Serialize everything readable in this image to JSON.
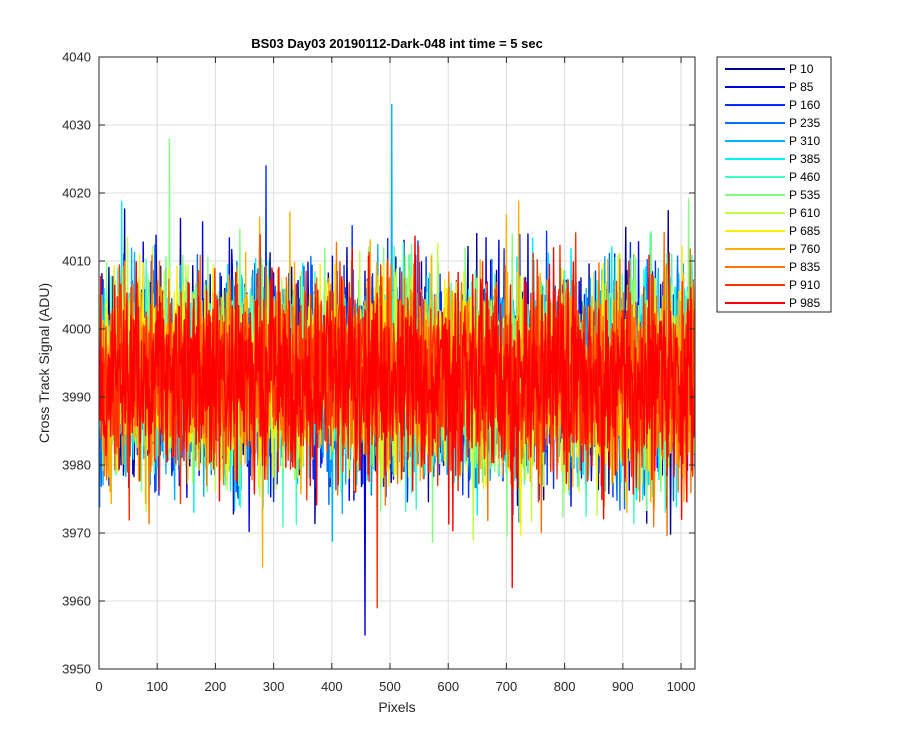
{
  "chart_data": {
    "type": "line",
    "title": "BS03 Day03 20190112-Dark-048 int time = 5 sec",
    "xlabel": "Pixels",
    "ylabel": "Cross Track Signal (ADU)",
    "xlim": [
      0,
      1024
    ],
    "ylim": [
      3950,
      4040
    ],
    "xticks": [
      0,
      100,
      200,
      300,
      400,
      500,
      600,
      700,
      800,
      900,
      1000
    ],
    "yticks": [
      3950,
      3960,
      3970,
      3980,
      3990,
      4000,
      4010,
      4020,
      4030,
      4040
    ],
    "grid": true,
    "legend_position": "outside-top-right",
    "x": {
      "start": 1,
      "end": 1024
    },
    "noise_model": {
      "mean": 3993,
      "stddev": 7
    },
    "series": [
      {
        "name": "P 10",
        "color": "#00008F"
      },
      {
        "name": "P 85",
        "color": "#0000DF"
      },
      {
        "name": "P 160",
        "color": "#0030FF"
      },
      {
        "name": "P 235",
        "color": "#0070FF"
      },
      {
        "name": "P 310",
        "color": "#00B0FF"
      },
      {
        "name": "P 385",
        "color": "#00F0FF"
      },
      {
        "name": "P 460",
        "color": "#40FFBF"
      },
      {
        "name": "P 535",
        "color": "#80FF80"
      },
      {
        "name": "P 610",
        "color": "#BFFF40"
      },
      {
        "name": "P 685",
        "color": "#FFF000"
      },
      {
        "name": "P 760",
        "color": "#FFB000"
      },
      {
        "name": "P 835",
        "color": "#FF7000"
      },
      {
        "name": "P 910",
        "color": "#FF3000"
      },
      {
        "name": "P 985",
        "color": "#FF0000"
      }
    ],
    "extremes": [
      {
        "series": "P 85",
        "x": 457,
        "y": 3955
      },
      {
        "series": "P 910",
        "x": 478,
        "y": 3959
      },
      {
        "series": "P 310",
        "x": 503,
        "y": 4033
      },
      {
        "series": "P 535",
        "x": 121,
        "y": 4028
      },
      {
        "series": "P 160",
        "x": 287,
        "y": 4024
      },
      {
        "series": "P 985",
        "x": 710,
        "y": 3962
      },
      {
        "series": "P 760",
        "x": 281,
        "y": 3965
      }
    ]
  }
}
